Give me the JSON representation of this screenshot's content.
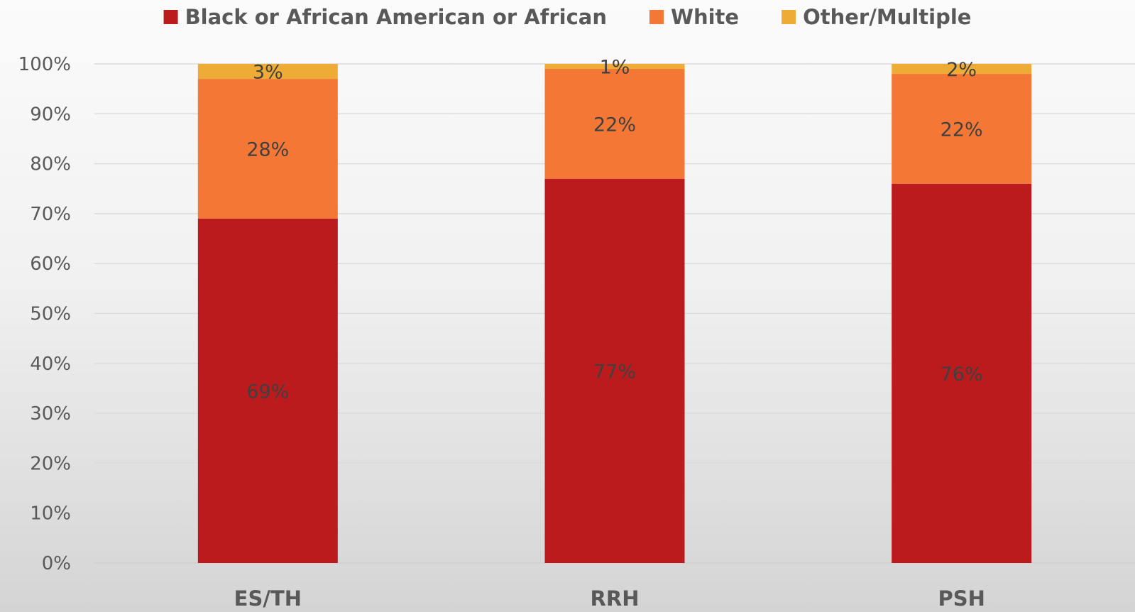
{
  "chart_data": {
    "type": "bar",
    "stacked": true,
    "categories": [
      "ES/TH",
      "RRH",
      "PSH"
    ],
    "series": [
      {
        "name": "Black or African American or African",
        "values": [
          69,
          77,
          76
        ],
        "labels": [
          "69%",
          "77%",
          "76%"
        ],
        "color": "#bb1b1d"
      },
      {
        "name": "White",
        "values": [
          28,
          22,
          22
        ],
        "labels": [
          "28%",
          "22%",
          "22%"
        ],
        "color": "#f47735"
      },
      {
        "name": "Other/Multiple",
        "values": [
          3,
          1,
          2
        ],
        "labels": [
          "3%",
          "1%",
          "2%"
        ],
        "color": "#eeac36"
      }
    ],
    "ylim": [
      0,
      100
    ],
    "yticks": [
      "0%",
      "10%",
      "20%",
      "30%",
      "40%",
      "50%",
      "60%",
      "70%",
      "80%",
      "90%",
      "100%"
    ],
    "legend_position": "top",
    "grid": true
  }
}
